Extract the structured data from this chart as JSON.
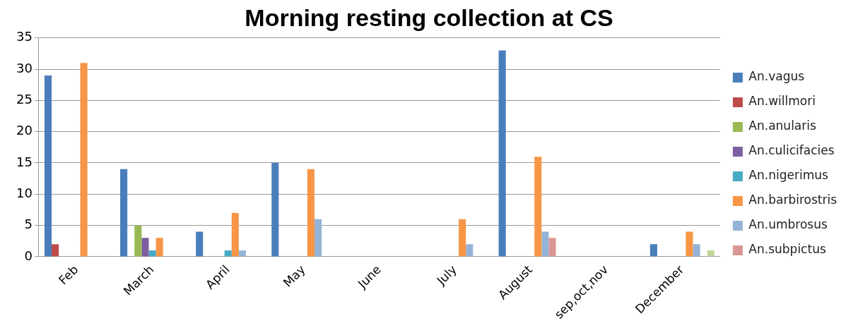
{
  "chart_data": {
    "type": "bar",
    "title": "Morning resting collection at CS",
    "categories": [
      "Feb",
      "March",
      "April",
      "May",
      "June",
      "July",
      "August",
      "sep,oct,nov",
      "December"
    ],
    "series": [
      {
        "name": "An.vagus",
        "color": "#4a7ebb",
        "values": [
          29,
          14,
          4,
          15,
          0,
          0,
          33,
          0,
          2
        ]
      },
      {
        "name": "An.willmori",
        "color": "#be4b48",
        "values": [
          2,
          0,
          0,
          0,
          0,
          0,
          0,
          0,
          0
        ]
      },
      {
        "name": "An.anularis",
        "color": "#98b954",
        "values": [
          0,
          5,
          0,
          0,
          0,
          0,
          0,
          0,
          0
        ]
      },
      {
        "name": "An.culicifacies",
        "color": "#7d5fa0",
        "values": [
          0,
          3,
          0,
          0,
          0,
          0,
          0,
          0,
          0
        ]
      },
      {
        "name": "An.nigerimus",
        "color": "#46aac5",
        "values": [
          0,
          1,
          1,
          0,
          0,
          0,
          0,
          0,
          0
        ]
      },
      {
        "name": "An.barbirostris",
        "color": "#f79646",
        "values": [
          31,
          3,
          7,
          14,
          0,
          6,
          16,
          0,
          4
        ]
      },
      {
        "name": "An.umbrosus",
        "color": "#95b3d7",
        "values": [
          0,
          0,
          1,
          6,
          0,
          2,
          4,
          0,
          2
        ]
      },
      {
        "name": "An.subpictus",
        "color": "#da9694",
        "values": [
          0,
          0,
          0,
          0,
          0,
          0,
          3,
          0,
          0
        ]
      },
      {
        "color": "#c3d69b",
        "values": [
          0,
          0,
          0,
          0,
          0,
          0,
          0,
          0,
          1
        ]
      }
    ],
    "ylim": [
      0,
      35
    ],
    "yticks": [
      0,
      5,
      10,
      15,
      20,
      25,
      30,
      35
    ],
    "grid": "y",
    "legend": "right"
  }
}
